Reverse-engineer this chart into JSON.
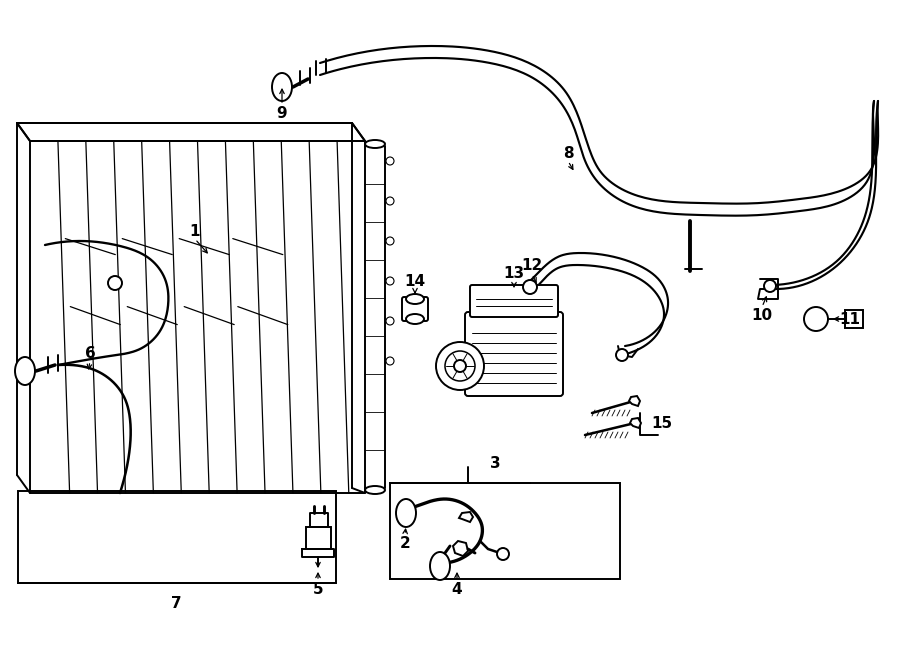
{
  "bg_color": "#ffffff",
  "lc": "#000000",
  "lw": 1.4,
  "tlw": 2.8
}
